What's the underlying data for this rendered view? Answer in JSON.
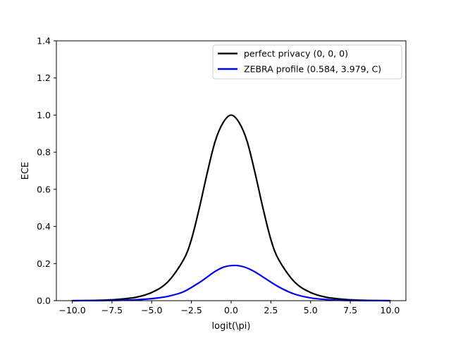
{
  "chart_data": {
    "type": "line",
    "title": "",
    "xlabel": "logit(\\pi)",
    "ylabel": "ECE",
    "xlim": [
      -11.0,
      11.0
    ],
    "ylim": [
      0.0,
      1.4
    ],
    "xticks": [
      -10.0,
      -7.5,
      -5.0,
      -2.5,
      0.0,
      2.5,
      5.0,
      7.5,
      10.0
    ],
    "xtick_labels": [
      "−10.0",
      "−7.5",
      "−5.0",
      "−2.5",
      "0.0",
      "2.5",
      "5.0",
      "7.5",
      "10.0"
    ],
    "yticks": [
      0.0,
      0.2,
      0.4,
      0.6,
      0.8,
      1.0,
      1.2,
      1.4
    ],
    "ytick_labels": [
      "0.0",
      "0.2",
      "0.4",
      "0.6",
      "0.8",
      "1.0",
      "1.2",
      "1.4"
    ],
    "grid": false,
    "legend_position": "top-right",
    "series": [
      {
        "name": "perfect privacy (0, 0, 0)",
        "color": "#000000",
        "x": [
          -10.0,
          -9.0,
          -8.0,
          -7.5,
          -7.0,
          -6.0,
          -5.0,
          -4.0,
          -3.0,
          -2.5,
          -2.0,
          -1.5,
          -1.0,
          -0.5,
          0.0,
          0.5,
          1.0,
          1.5,
          2.0,
          2.5,
          3.0,
          4.0,
          5.0,
          6.0,
          7.0,
          7.5,
          8.0,
          9.0,
          10.0
        ],
        "y": [
          0.0,
          0.001,
          0.003,
          0.005,
          0.008,
          0.018,
          0.044,
          0.1,
          0.22,
          0.33,
          0.5,
          0.69,
          0.86,
          0.96,
          1.0,
          0.96,
          0.86,
          0.69,
          0.5,
          0.33,
          0.22,
          0.1,
          0.044,
          0.018,
          0.008,
          0.005,
          0.003,
          0.001,
          0.0
        ]
      },
      {
        "name": "ZEBRA profile (0.584, 3.979, C)",
        "color": "#0000ff",
        "x": [
          -10.0,
          -9.0,
          -8.0,
          -7.0,
          -6.0,
          -5.0,
          -4.0,
          -3.0,
          -2.0,
          -1.5,
          -1.0,
          -0.5,
          0.0,
          0.5,
          1.0,
          1.5,
          2.0,
          3.0,
          4.0,
          5.0,
          6.0,
          7.0,
          8.0,
          9.0,
          10.0
        ],
        "y": [
          0.0,
          0.0003,
          0.001,
          0.002,
          0.005,
          0.011,
          0.023,
          0.048,
          0.098,
          0.128,
          0.158,
          0.18,
          0.189,
          0.188,
          0.176,
          0.155,
          0.128,
          0.074,
          0.035,
          0.015,
          0.006,
          0.002,
          0.0008,
          0.0003,
          0.0
        ]
      }
    ]
  }
}
